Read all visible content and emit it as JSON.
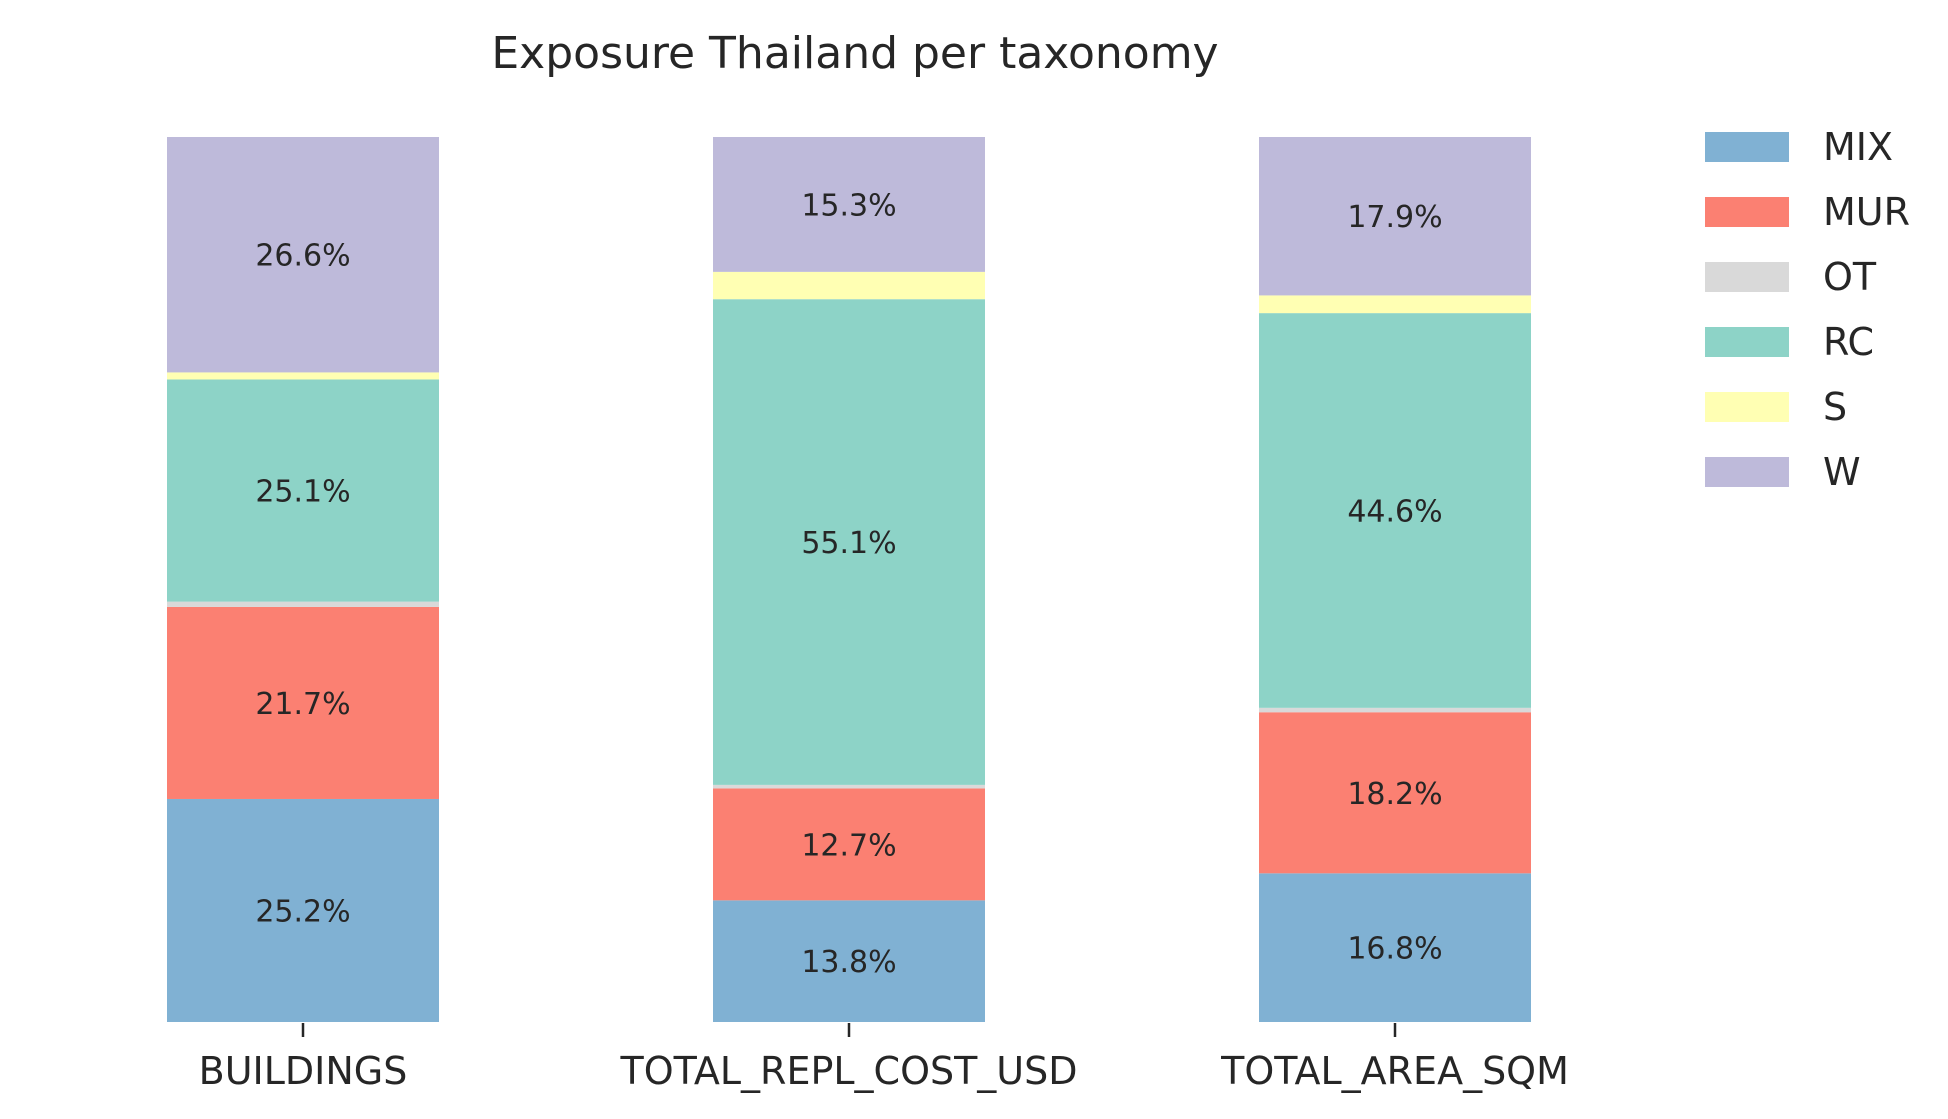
{
  "chart_data": {
    "type": "bar",
    "stacked": true,
    "normalized": true,
    "title": "Exposure Thailand per taxonomy",
    "categories": [
      "BUILDINGS",
      "TOTAL_REPL_COST_USD",
      "TOTAL_AREA_SQM"
    ],
    "ylim": [
      0,
      100
    ],
    "grid": false,
    "legend_placement": "top-right-outside",
    "series": [
      {
        "name": "MIX",
        "color": "#80b1d3",
        "values": [
          25.2,
          13.8,
          16.8
        ],
        "labels": [
          "25.2%",
          "13.8%",
          "16.8%"
        ]
      },
      {
        "name": "MUR",
        "color": "#fb8072",
        "values": [
          21.7,
          12.7,
          18.2
        ],
        "labels": [
          "21.7%",
          "12.7%",
          "18.2%"
        ]
      },
      {
        "name": "OT",
        "color": "#d9d9d9",
        "values": [
          0.6,
          0.4,
          0.5
        ],
        "labels": [
          "",
          "",
          ""
        ]
      },
      {
        "name": "RC",
        "color": "#8dd3c7",
        "values": [
          25.1,
          55.1,
          44.6
        ],
        "labels": [
          "25.1%",
          "55.1%",
          "44.6%"
        ]
      },
      {
        "name": "S",
        "color": "#ffffb3",
        "values": [
          0.8,
          3.1,
          2.0
        ],
        "labels": [
          "",
          "",
          ""
        ]
      },
      {
        "name": "W",
        "color": "#bebada",
        "values": [
          26.6,
          15.3,
          17.9
        ],
        "labels": [
          "26.6%",
          "15.3%",
          "17.9%"
        ]
      }
    ]
  }
}
